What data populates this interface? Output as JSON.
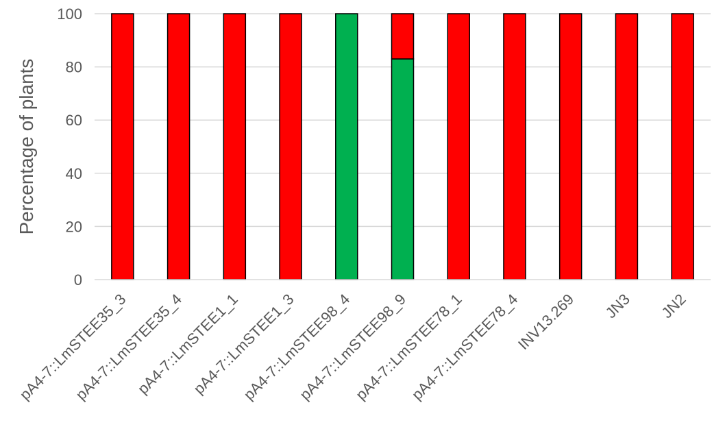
{
  "chart_data": {
    "type": "bar",
    "stacked": true,
    "title": "",
    "xlabel": "",
    "ylabel": "Percentage of plants",
    "ylim": [
      0,
      100
    ],
    "yticks": [
      0,
      20,
      40,
      60,
      80,
      100
    ],
    "grid": "horizontal",
    "legend": "none",
    "categories": [
      "pA4-7::LmSTEE35_3",
      "pA4-7::LmSTEE35_4",
      "pA4-7::LmSTEE1_1",
      "pA4-7::LmSTEE1_3",
      "pA4-7::LmSTEE98_4",
      "pA4-7::LmSTEE98_9",
      "pA4-7::LmSTEE78_1",
      "pA4-7::LmSTEE78_4",
      "INV13.269",
      "JN3",
      "JN2"
    ],
    "series": [
      {
        "color": "#00B050",
        "values": [
          0,
          0,
          0,
          0,
          100,
          83,
          0,
          0,
          0,
          0,
          0
        ]
      },
      {
        "color": "#FF0000",
        "values": [
          100,
          100,
          100,
          100,
          0,
          17,
          100,
          100,
          100,
          100,
          100
        ]
      }
    ]
  }
}
